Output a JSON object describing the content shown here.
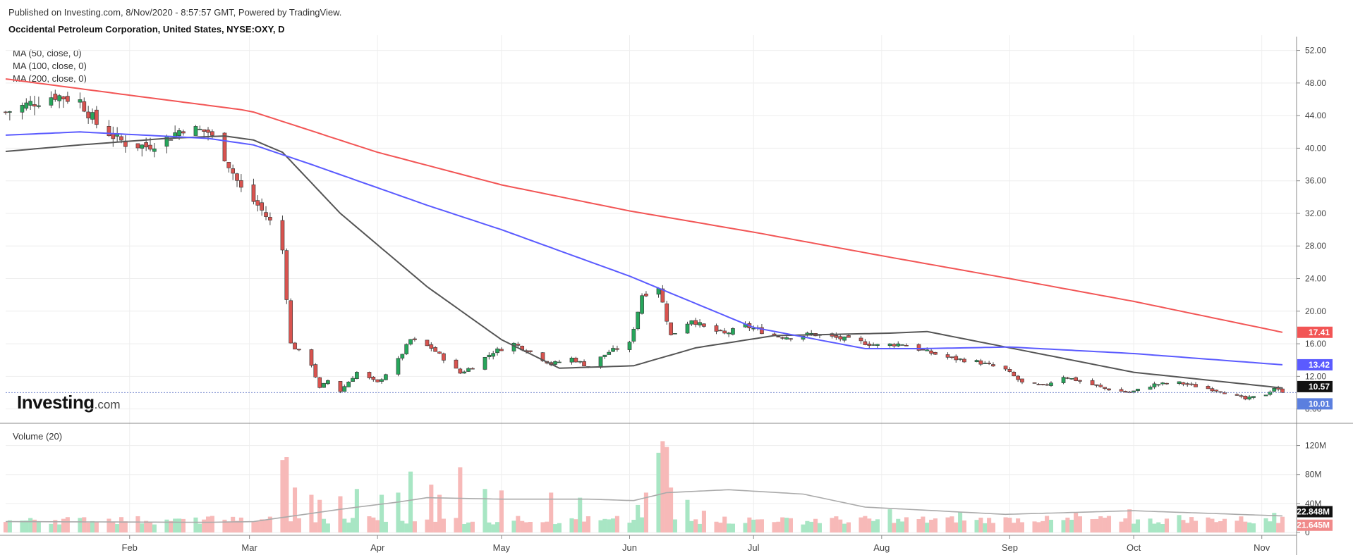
{
  "header": {
    "published": "Published on Investing.com, 8/Nov/2020 - 8:57:57 GMT, Powered by TradingView.",
    "title": "Occidental Petroleum Corporation, United States, NYSE:OXY, D"
  },
  "indicators": [
    "MA (50, close, 0)",
    "MA (100, close, 0)",
    "MA (200, close, 0)"
  ],
  "volume_panel_title": "Volume (20)",
  "logo": {
    "main": "Investing",
    "suffix": ".com"
  },
  "colors": {
    "up": "#26a65b",
    "down": "#d9534f",
    "up_vol": "#a8e6c4",
    "down_vol": "#f7b9b8",
    "ma50": "#555555",
    "ma100": "#5b5bff",
    "ma200": "#f25555",
    "vol_ma": "#aaaaaa",
    "grid": "#eeeeee",
    "last_price_line": "#7f8fd0"
  },
  "chart_data": {
    "type": "candlestick",
    "x_start": "2020-01-02",
    "x_end": "2020-11-06",
    "xtick_labels": [
      "Feb",
      "Mar",
      "Apr",
      "May",
      "Jun",
      "Jul",
      "Aug",
      "Sep",
      "Oct",
      "Nov"
    ],
    "xtick_dates": [
      "2020-02-01",
      "2020-03-01",
      "2020-04-01",
      "2020-05-01",
      "2020-06-01",
      "2020-07-01",
      "2020-08-01",
      "2020-09-01",
      "2020-10-01",
      "2020-11-01"
    ],
    "price_axis": {
      "ticks": [
        52,
        48,
        44,
        40,
        36,
        32,
        28,
        24,
        20,
        16,
        12,
        8
      ],
      "tick_labels": [
        "52.00",
        "48.00",
        "44.00",
        "40.00",
        "36.00",
        "32.00",
        "28.00",
        "24.00",
        "20.00",
        "16.00",
        "12.00",
        "8.00"
      ],
      "range": [
        6.5,
        53
      ]
    },
    "volume_axis": {
      "ticks": [
        120,
        80,
        40,
        0
      ],
      "tick_labels": [
        "120M",
        "80M",
        "40M",
        "0"
      ],
      "range": [
        0,
        140
      ]
    },
    "price_badges": [
      {
        "label": "MA (200)",
        "value": "17.41",
        "color": "#f25555"
      },
      {
        "label": "MA (100)",
        "value": "13.42",
        "color": "#5b5bff"
      },
      {
        "label": "MA (50)",
        "value": "10.57",
        "color": "#111111"
      },
      {
        "label": "Close",
        "value": "10.01",
        "color": "#5b7fdf"
      }
    ],
    "volume_badges": [
      {
        "label": "Volume MA",
        "value": "22.848M",
        "color": "#111111"
      },
      {
        "label": "Volume",
        "value": "21.645M",
        "color": "#f08a8a"
      }
    ],
    "close_anchors": [
      [
        "2020-01-02",
        44.4
      ],
      [
        "2020-01-08",
        45.5
      ],
      [
        "2020-01-14",
        46.5
      ],
      [
        "2020-01-20",
        45.8
      ],
      [
        "2020-01-24",
        43.0
      ],
      [
        "2020-01-28",
        41.5
      ],
      [
        "2020-01-31",
        40.6
      ],
      [
        "2020-02-05",
        40.2
      ],
      [
        "2020-02-10",
        41.2
      ],
      [
        "2020-02-14",
        42.5
      ],
      [
        "2020-02-20",
        42.0
      ],
      [
        "2020-02-24",
        39.0
      ],
      [
        "2020-02-28",
        35.0
      ],
      [
        "2020-03-03",
        33.0
      ],
      [
        "2020-03-06",
        31.0
      ],
      [
        "2020-03-09",
        27.5
      ],
      [
        "2020-03-11",
        16.0
      ],
      [
        "2020-03-16",
        13.5
      ],
      [
        "2020-03-18",
        10.5
      ],
      [
        "2020-03-20",
        11.5
      ],
      [
        "2020-03-23",
        10.2
      ],
      [
        "2020-03-27",
        12.5
      ],
      [
        "2020-04-01",
        11.2
      ],
      [
        "2020-04-06",
        14.0
      ],
      [
        "2020-04-09",
        16.5
      ],
      [
        "2020-04-14",
        15.5
      ],
      [
        "2020-04-17",
        14.2
      ],
      [
        "2020-04-21",
        12.4
      ],
      [
        "2020-04-24",
        13.2
      ],
      [
        "2020-04-29",
        15.0
      ],
      [
        "2020-05-04",
        16.0
      ],
      [
        "2020-05-08",
        15.0
      ],
      [
        "2020-05-13",
        13.5
      ],
      [
        "2020-05-18",
        14.2
      ],
      [
        "2020-05-22",
        13.2
      ],
      [
        "2020-05-27",
        15.0
      ],
      [
        "2020-06-01",
        16.0
      ],
      [
        "2020-06-04",
        22.0
      ],
      [
        "2020-06-08",
        23.0
      ],
      [
        "2020-06-11",
        17.0
      ],
      [
        "2020-06-16",
        19.0
      ],
      [
        "2020-06-19",
        18.0
      ],
      [
        "2020-06-24",
        17.2
      ],
      [
        "2020-06-29",
        18.2
      ],
      [
        "2020-07-06",
        17.0
      ],
      [
        "2020-07-10",
        16.8
      ],
      [
        "2020-07-15",
        17.2
      ],
      [
        "2020-07-20",
        16.8
      ],
      [
        "2020-07-24",
        16.5
      ],
      [
        "2020-07-31",
        15.8
      ],
      [
        "2020-08-06",
        16.0
      ],
      [
        "2020-08-12",
        15.0
      ],
      [
        "2020-08-18",
        14.2
      ],
      [
        "2020-08-24",
        13.8
      ],
      [
        "2020-08-31",
        12.8
      ],
      [
        "2020-09-04",
        11.2
      ],
      [
        "2020-09-09",
        10.8
      ],
      [
        "2020-09-14",
        12.0
      ],
      [
        "2020-09-18",
        11.4
      ],
      [
        "2020-09-24",
        10.5
      ],
      [
        "2020-09-30",
        10.0
      ],
      [
        "2020-10-06",
        11.0
      ],
      [
        "2020-10-12",
        11.2
      ],
      [
        "2020-10-16",
        10.8
      ],
      [
        "2020-10-22",
        10.2
      ],
      [
        "2020-10-28",
        9.2
      ],
      [
        "2020-11-02",
        9.8
      ],
      [
        "2020-11-04",
        10.6
      ],
      [
        "2020-11-06",
        10.01
      ]
    ],
    "moving_averages": [
      {
        "name": "MA (50, close, 0)",
        "color": "#555555",
        "points": [
          [
            "2020-01-02",
            39.6
          ],
          [
            "2020-01-20",
            40.4
          ],
          [
            "2020-02-10",
            41.2
          ],
          [
            "2020-02-24",
            41.5
          ],
          [
            "2020-03-02",
            41.0
          ],
          [
            "2020-03-09",
            39.5
          ],
          [
            "2020-03-23",
            32.0
          ],
          [
            "2020-04-13",
            23.0
          ],
          [
            "2020-05-01",
            16.5
          ],
          [
            "2020-05-15",
            13.0
          ],
          [
            "2020-06-02",
            13.3
          ],
          [
            "2020-06-17",
            15.5
          ],
          [
            "2020-07-06",
            17.0
          ],
          [
            "2020-08-03",
            17.3
          ],
          [
            "2020-08-12",
            17.5
          ],
          [
            "2020-09-01",
            15.5
          ],
          [
            "2020-10-01",
            12.5
          ],
          [
            "2020-11-06",
            10.57
          ]
        ]
      },
      {
        "name": "MA (100, close, 0)",
        "color": "#5b5bff",
        "points": [
          [
            "2020-01-02",
            41.6
          ],
          [
            "2020-01-20",
            42.0
          ],
          [
            "2020-02-20",
            41.2
          ],
          [
            "2020-03-02",
            40.4
          ],
          [
            "2020-03-16",
            38.0
          ],
          [
            "2020-04-13",
            33.0
          ],
          [
            "2020-05-01",
            30.0
          ],
          [
            "2020-06-01",
            24.3
          ],
          [
            "2020-07-01",
            18.0
          ],
          [
            "2020-07-28",
            15.4
          ],
          [
            "2020-08-10",
            15.4
          ],
          [
            "2020-09-01",
            15.6
          ],
          [
            "2020-10-01",
            14.8
          ],
          [
            "2020-11-06",
            13.42
          ]
        ]
      },
      {
        "name": "MA (200, close, 0)",
        "color": "#f25555",
        "points": [
          [
            "2020-01-02",
            48.5
          ],
          [
            "2020-02-01",
            46.5
          ],
          [
            "2020-03-01",
            44.6
          ],
          [
            "2020-04-01",
            39.5
          ],
          [
            "2020-05-01",
            35.5
          ],
          [
            "2020-06-01",
            32.3
          ],
          [
            "2020-07-01",
            29.7
          ],
          [
            "2020-08-01",
            26.8
          ],
          [
            "2020-09-01",
            24.0
          ],
          [
            "2020-10-01",
            21.2
          ],
          [
            "2020-11-06",
            17.41
          ]
        ]
      }
    ],
    "volume": {
      "base_level_up": 11,
      "base_level_down": 13,
      "spikes": [
        [
          "2020-02-25",
          14
        ],
        [
          "2020-02-27",
          16
        ],
        [
          "2020-03-05",
          18
        ],
        [
          "2020-03-09",
          100
        ],
        [
          "2020-03-10",
          104
        ],
        [
          "2020-03-12",
          62
        ],
        [
          "2020-03-16",
          52
        ],
        [
          "2020-03-18",
          45
        ],
        [
          "2020-03-23",
          50
        ],
        [
          "2020-03-27",
          60
        ],
        [
          "2020-04-02",
          52
        ],
        [
          "2020-04-06",
          55
        ],
        [
          "2020-04-09",
          84
        ],
        [
          "2020-04-14",
          66
        ],
        [
          "2020-04-16",
          52
        ],
        [
          "2020-04-21",
          90
        ],
        [
          "2020-04-27",
          60
        ],
        [
          "2020-05-01",
          58
        ],
        [
          "2020-05-13",
          55
        ],
        [
          "2020-05-20",
          48
        ],
        [
          "2020-06-03",
          38
        ],
        [
          "2020-06-05",
          55
        ],
        [
          "2020-06-08",
          110
        ],
        [
          "2020-06-09",
          126
        ],
        [
          "2020-06-10",
          118
        ],
        [
          "2020-06-11",
          62
        ],
        [
          "2020-06-15",
          45
        ],
        [
          "2020-06-19",
          30
        ],
        [
          "2020-07-24",
          14
        ],
        [
          "2020-08-03",
          32
        ],
        [
          "2020-08-20",
          28
        ],
        [
          "2020-09-17",
          28
        ],
        [
          "2020-09-30",
          32
        ],
        [
          "2020-10-12",
          24
        ],
        [
          "2020-11-04",
          27
        ]
      ],
      "ma_anchors": [
        [
          "2020-01-02",
          15
        ],
        [
          "2020-02-20",
          14
        ],
        [
          "2020-03-02",
          15
        ],
        [
          "2020-03-23",
          32
        ],
        [
          "2020-04-06",
          42
        ],
        [
          "2020-04-13",
          48
        ],
        [
          "2020-05-01",
          46
        ],
        [
          "2020-05-22",
          46
        ],
        [
          "2020-06-02",
          44
        ],
        [
          "2020-06-10",
          55
        ],
        [
          "2020-06-25",
          59
        ],
        [
          "2020-07-13",
          53
        ],
        [
          "2020-07-28",
          35
        ],
        [
          "2020-08-31",
          25
        ],
        [
          "2020-10-01",
          30
        ],
        [
          "2020-11-06",
          22.848
        ]
      ],
      "last_volume": 21.645
    }
  }
}
